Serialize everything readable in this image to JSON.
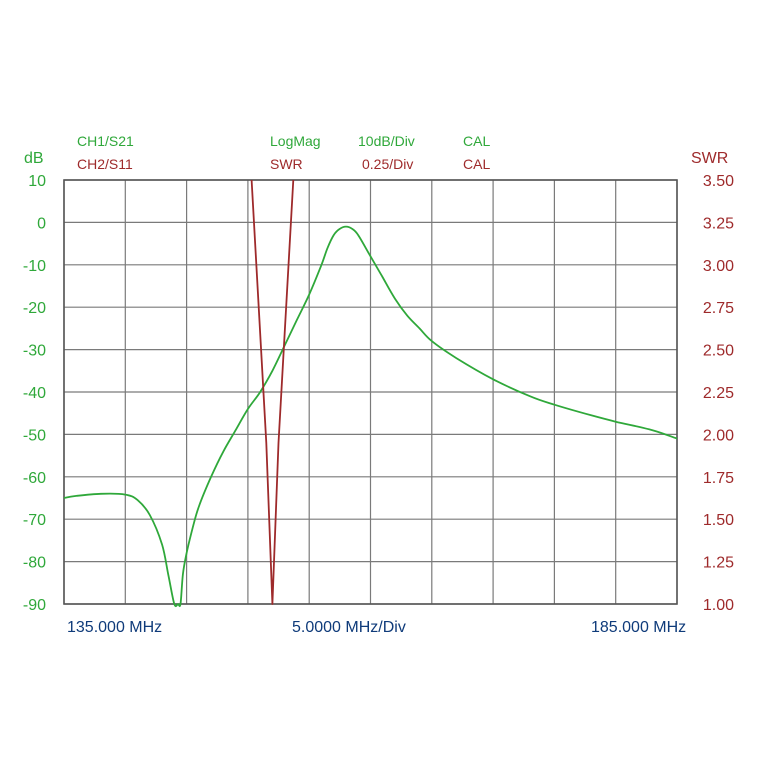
{
  "header": {
    "ch1": {
      "name": "CH1/S21",
      "format": "LogMag",
      "scale": "10dB/Div",
      "status": "CAL"
    },
    "ch2": {
      "name": "CH2/S11",
      "format": "SWR",
      "scale": "0.25/Div",
      "status": "CAL"
    }
  },
  "colors": {
    "ch1": "#2fa83a",
    "ch2": "#9e2a2b",
    "freq_labels": "#0f3b7a",
    "grid": "#7a7a7a"
  },
  "chart_data": {
    "type": "line",
    "x_unit": "MHz",
    "xlim": [
      135,
      185
    ],
    "x_start_label": "135.000 MHz",
    "x_div_label": "5.0000 MHz/Div",
    "x_stop_label": "185.000 MHz",
    "grid": true,
    "left_axis": {
      "label": "dB",
      "ticks": [
        "10",
        "0",
        "-10",
        "-20",
        "-30",
        "-40",
        "-50",
        "-60",
        "-70",
        "-80",
        "-90"
      ],
      "ylim": [
        -90,
        10
      ]
    },
    "right_axis": {
      "label": "SWR",
      "ticks": [
        "3.50",
        "3.25",
        "3.00",
        "2.75",
        "2.50",
        "2.25",
        "2.00",
        "1.75",
        "1.50",
        "1.25",
        "1.00"
      ],
      "ylim": [
        1.0,
        3.5
      ]
    },
    "series": [
      {
        "name": "CH1/S21",
        "axis": "left",
        "x": [
          135,
          136,
          138,
          140,
          141,
          142,
          143,
          143.5,
          144,
          144.3,
          144.5,
          144.7,
          145,
          145.5,
          146,
          147,
          148,
          149,
          150,
          151,
          152,
          153,
          154,
          155,
          156,
          156.5,
          157,
          157.5,
          158,
          158.5,
          159,
          160,
          161,
          162,
          163,
          164,
          165,
          167,
          170,
          173,
          175,
          178,
          180,
          183,
          185
        ],
        "y": [
          -65,
          -64.5,
          -64,
          -64.2,
          -65.5,
          -69,
          -76,
          -83,
          -90,
          -90,
          -90,
          -83,
          -78,
          -72,
          -67,
          -60,
          -54,
          -49,
          -44,
          -40,
          -35,
          -29,
          -23,
          -17,
          -10,
          -6,
          -3,
          -1.5,
          -1,
          -1.5,
          -3,
          -8,
          -13,
          -18,
          -22,
          -25,
          -28,
          -32,
          -37,
          -41,
          -43,
          -45.5,
          -47,
          -49,
          -51
        ]
      },
      {
        "name": "CH2/S11",
        "axis": "right",
        "x": [
          150.3,
          151.5,
          152,
          152.5,
          153.7
        ],
        "y": [
          3.5,
          1.95,
          1.0,
          1.95,
          3.5
        ]
      }
    ]
  }
}
